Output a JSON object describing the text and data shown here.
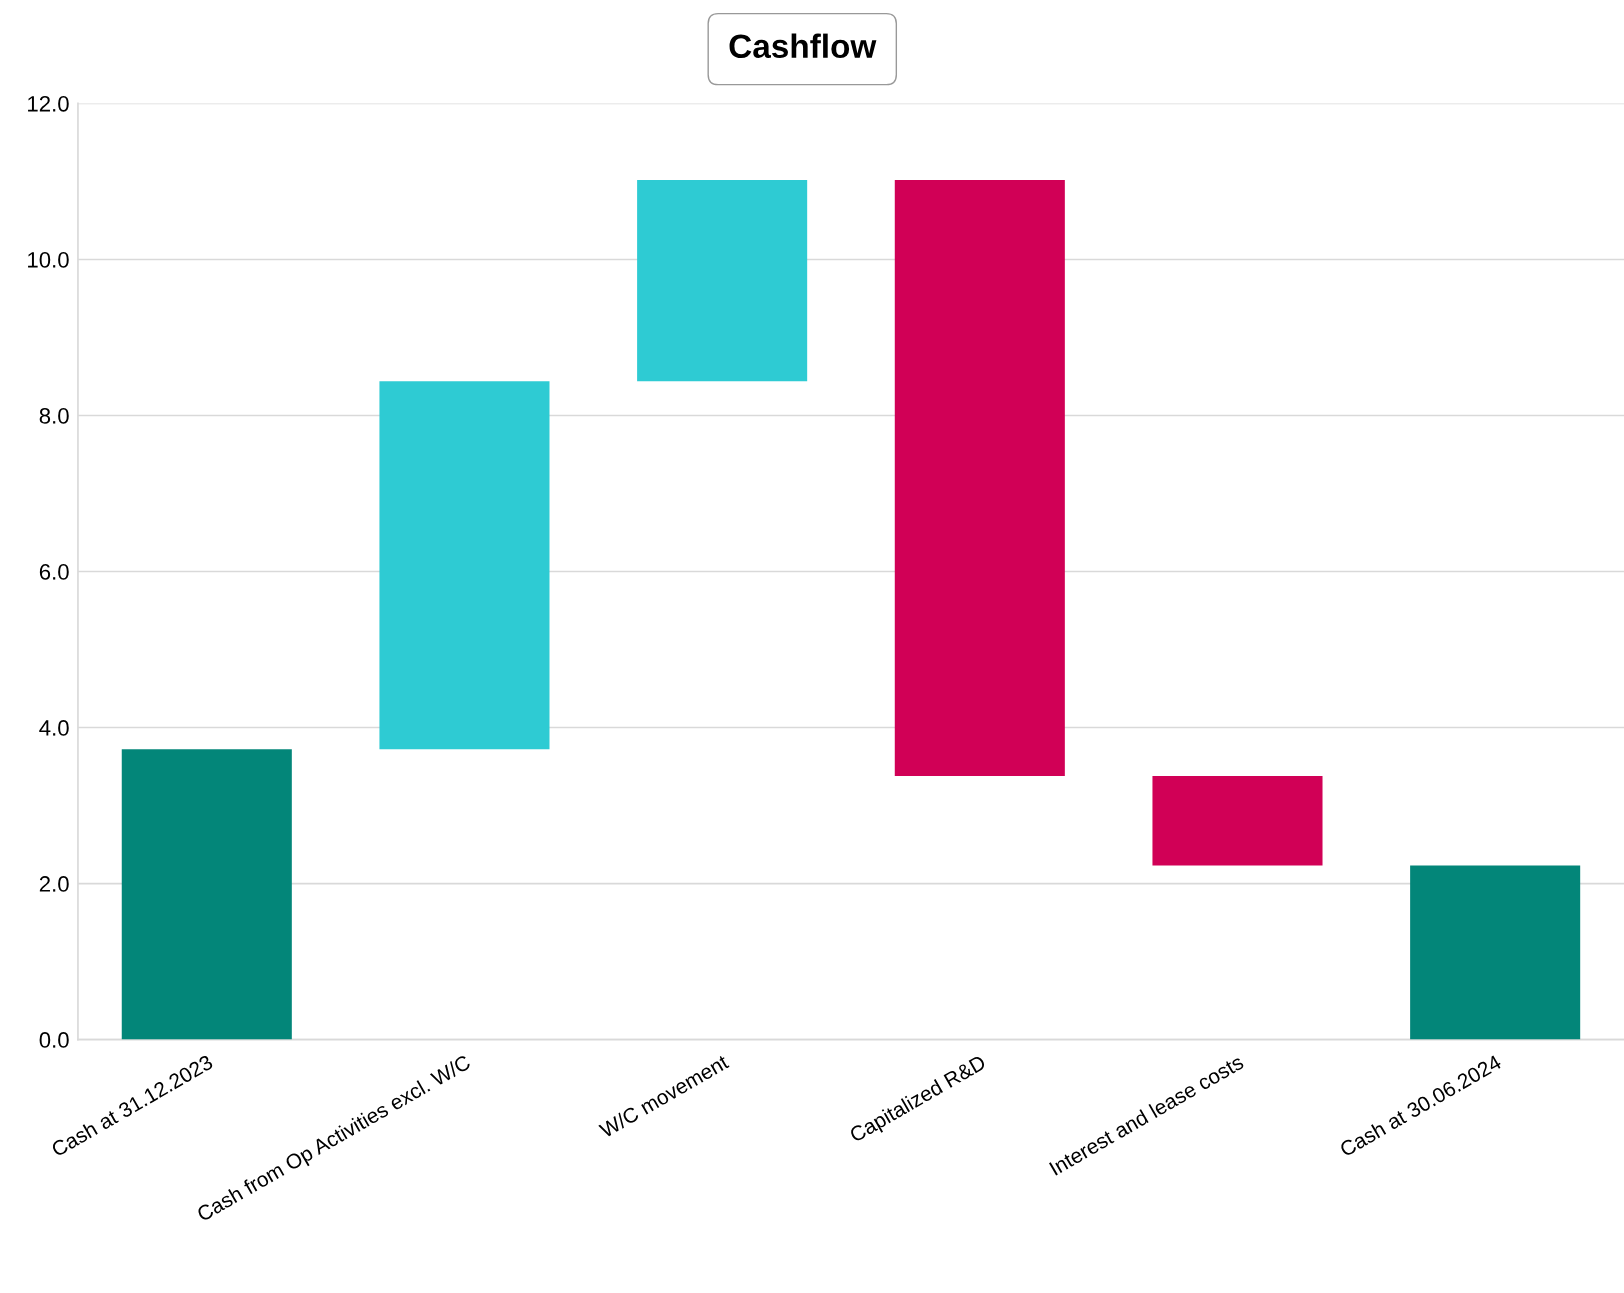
{
  "chart_data": {
    "type": "bar",
    "title": "Cashflow",
    "categories": [
      "Cash at 31.12.2023",
      "Cash from Op Activities excl. W/C",
      "W/C movement",
      "Capitalized R&D",
      "Interest and lease costs",
      "Cash at 30.06.2024"
    ],
    "values": [
      3.72,
      4.72,
      2.58,
      -7.64,
      -1.15,
      2.23
    ],
    "base": [
      0,
      3.72,
      8.44,
      11.02,
      3.38,
      0
    ],
    "colors": [
      "#038679",
      "#2ecbd3",
      "#2ecbd3",
      "#d10056",
      "#d10056",
      "#038679"
    ],
    "ylim": [
      0,
      12
    ],
    "yticks": [
      {
        "value": 0,
        "label": "0.0"
      },
      {
        "value": 2,
        "label": "2.0"
      },
      {
        "value": 4,
        "label": "4.0"
      },
      {
        "value": 6,
        "label": "6.0"
      },
      {
        "value": 8,
        "label": "8.0"
      },
      {
        "value": 10,
        "label": "10.0"
      },
      {
        "value": 12,
        "label": "12.0"
      }
    ],
    "grid": "y"
  }
}
